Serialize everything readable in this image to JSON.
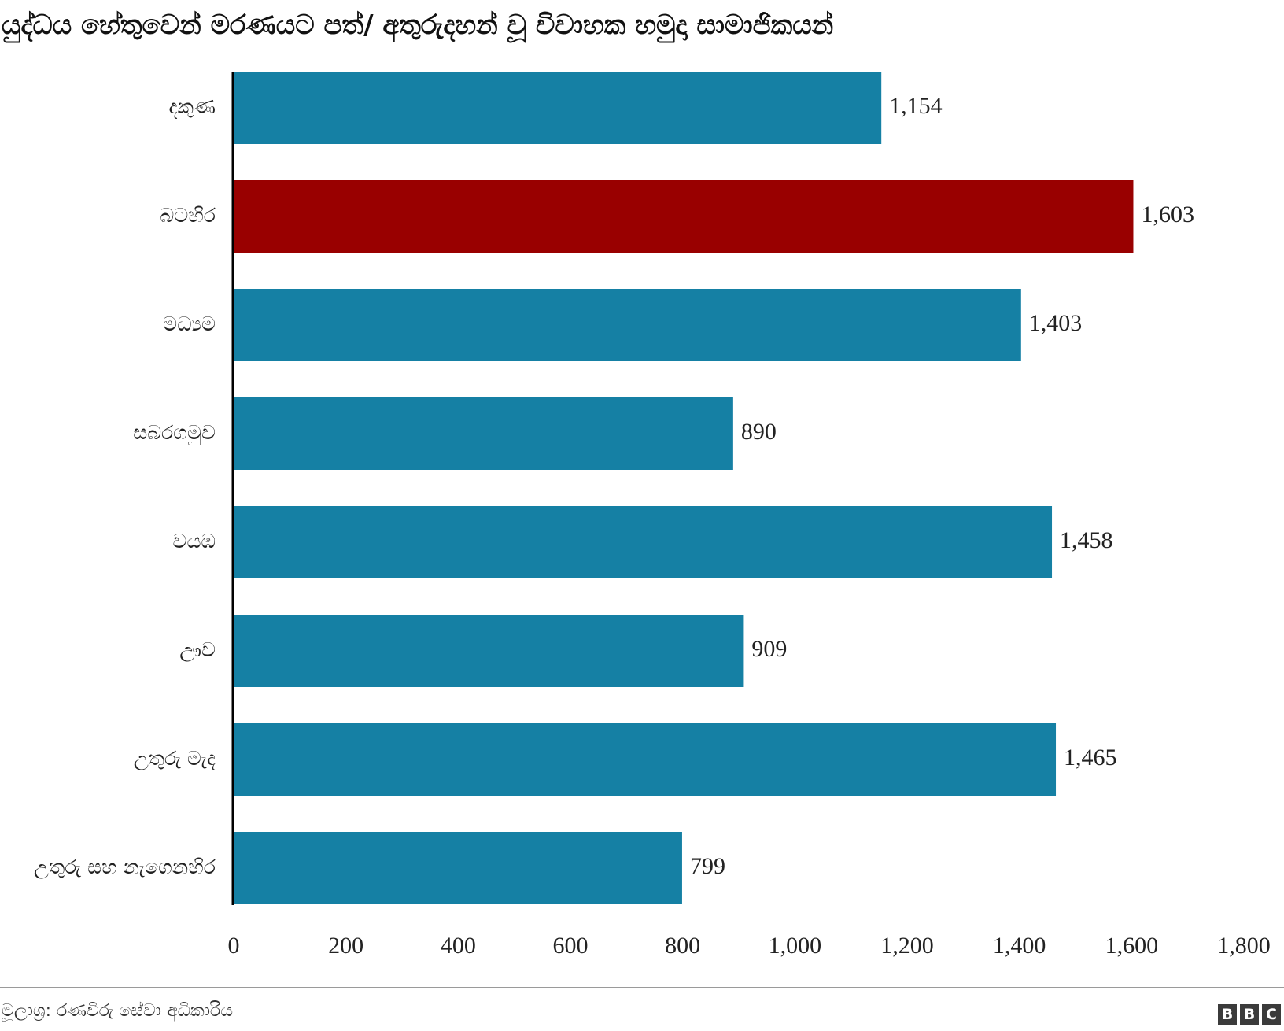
{
  "title": "යුද්ධය හේතුවෙන් මරණයට පත්/ අතුරුදහන් වූ විවාහක හමුදා සාමාජිකයන්",
  "source": "මූලාශ්‍ර: රණවිරු සේවා අධිකාරිය",
  "brand": {
    "letters": [
      "B",
      "B",
      "C"
    ]
  },
  "colors": {
    "default_bar": "#1580a4",
    "highlight_bar": "#990000",
    "axis": "#000000",
    "text": "#222222"
  },
  "chart_data": {
    "type": "bar",
    "orientation": "horizontal",
    "title": "යුද්ධය හේතුවෙන් මරණයට පත්/ අතුරුදහන් වූ විවාහක හමුදා සාමාජිකයන්",
    "xlabel": "",
    "ylabel": "",
    "categories": [
      "දකුණ",
      "බටහිර",
      "මධ්‍යම",
      "සබරගමුව",
      "වයඹ",
      "ඌව",
      "උතුරු මැද",
      "උතුරු සහ නැගෙනහිර"
    ],
    "values": [
      1154,
      1603,
      1403,
      890,
      1458,
      909,
      1465,
      799
    ],
    "value_labels": [
      "1,154",
      "1,603",
      "1,403",
      "890",
      "1,458",
      "909",
      "1,465",
      "799"
    ],
    "highlighted_category": "බටහිර",
    "xlim": [
      0,
      1800
    ],
    "xticks": [
      0,
      200,
      400,
      600,
      800,
      1000,
      1200,
      1400,
      1600,
      1800
    ],
    "xtick_labels": [
      "0",
      "200",
      "400",
      "600",
      "800",
      "1,000",
      "1,200",
      "1,400",
      "1,600",
      "1,800"
    ],
    "grid": false,
    "legend": "none"
  }
}
